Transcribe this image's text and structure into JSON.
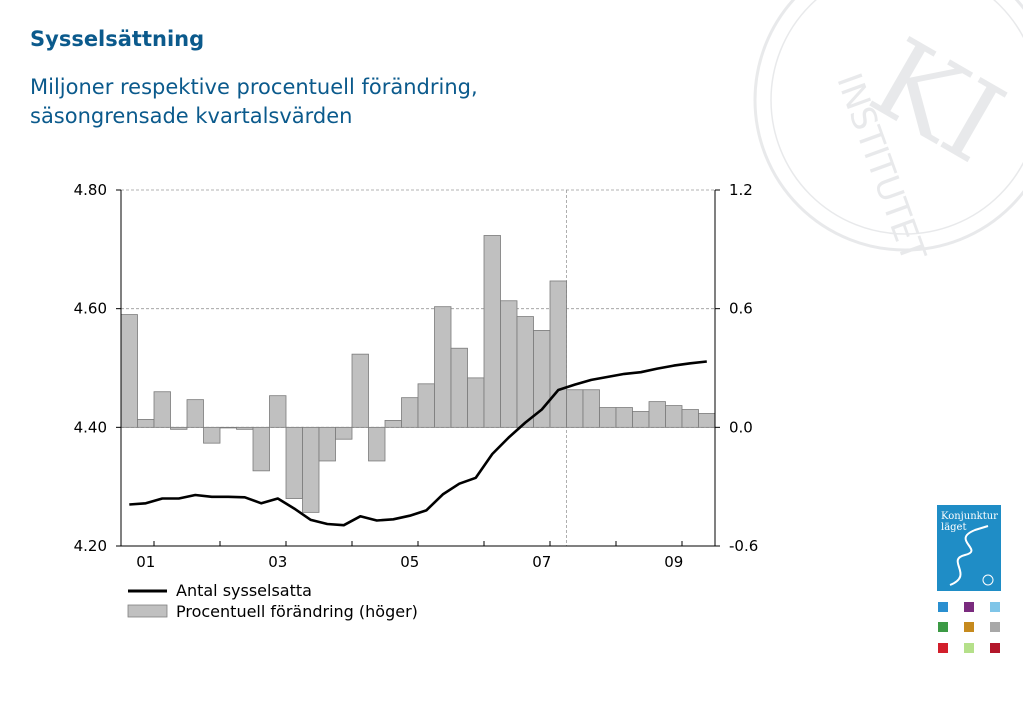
{
  "header": {
    "title": "Sysselsättning",
    "subtitle_line1": "Miljoner respektive procentuell förändring,",
    "subtitle_line2": "säsongrensade kvartalsvärden"
  },
  "watermark": {
    "text": "KI INSTITUTET"
  },
  "logo": {
    "text": "Konjunktur läget",
    "color": "#1f8dc6"
  },
  "colors": {
    "accent": "#0b5a8c",
    "bars": "#c0c0c0",
    "line": "#000000"
  },
  "chart_data": {
    "type": "bar",
    "x_tick_labels": [
      "01",
      "03",
      "05",
      "07",
      "09"
    ],
    "x_tick_quarter_index": [
      1.5,
      9.5,
      17.5,
      25.5,
      33.5
    ],
    "forecast_divider_after_quarter": 27,
    "left_axis": {
      "range": [
        4.2,
        4.8
      ],
      "ticks": [
        4.8,
        4.6,
        4.4,
        4.2
      ],
      "tick_labels": [
        "4.80",
        "4.60",
        "4.40",
        "4.20"
      ]
    },
    "right_axis": {
      "range": [
        -0.6,
        1.2
      ],
      "ticks": [
        1.2,
        0.6,
        0.0,
        -0.6
      ],
      "tick_labels": [
        "1.2",
        "0.6",
        "0.0",
        "-0.6"
      ]
    },
    "grid": true,
    "legend_position": "bottom-left",
    "series": [
      {
        "name": "Antal sysselsatta",
        "type": "line",
        "axis": "left",
        "values": [
          4.27,
          4.272,
          4.28,
          4.28,
          4.286,
          4.283,
          4.283,
          4.282,
          4.272,
          4.28,
          4.263,
          4.244,
          4.237,
          4.235,
          4.25,
          4.243,
          4.245,
          4.251,
          4.26,
          4.287,
          4.305,
          4.315,
          4.355,
          4.383,
          4.408,
          4.43,
          4.463,
          4.472,
          4.48,
          4.485,
          4.49,
          4.493,
          4.499,
          4.504,
          4.508,
          4.511
        ]
      },
      {
        "name": "Procentuell förändring (höger)",
        "type": "bar",
        "axis": "right",
        "values": [
          0.57,
          0.04,
          0.18,
          -0.01,
          0.14,
          -0.08,
          0.0,
          -0.01,
          -0.22,
          0.16,
          -0.36,
          -0.43,
          -0.17,
          -0.06,
          0.37,
          -0.17,
          0.035,
          0.15,
          0.22,
          0.61,
          0.4,
          0.25,
          0.97,
          0.64,
          0.56,
          0.49,
          0.74,
          0.19,
          0.19,
          0.1,
          0.1,
          0.08,
          0.13,
          0.11,
          0.09,
          0.07
        ]
      }
    ]
  }
}
